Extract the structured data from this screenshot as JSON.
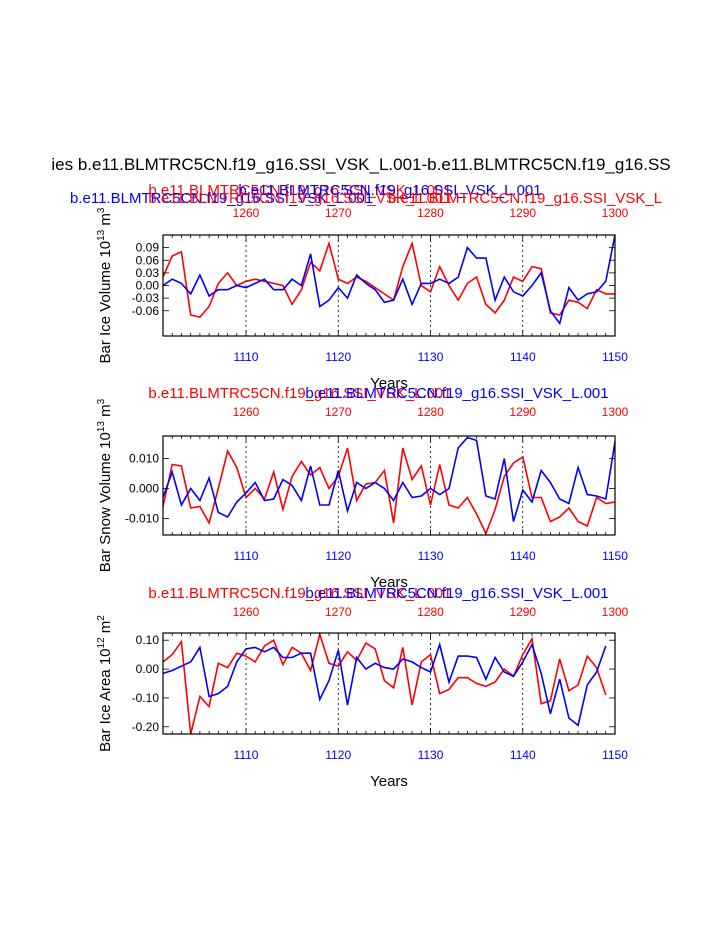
{
  "page_title": "ies b.e11.BLMTRC5CN.f19_g16.SSI_VSK_L.001-b.e11.BLMTRC5CN.f19_g16.SS",
  "colors": {
    "series_a": "#ff0000",
    "series_b": "#0000ff",
    "frame": "#000000",
    "grid": "#000000"
  },
  "chart_data": [
    {
      "type": "line",
      "ylabel": "Bar Ice Volume 10",
      "ylabel_exp": "13",
      "ylabel_unit": " m",
      "ylabel_unit_exp": "3",
      "xlabel": "Years",
      "title_lines": [
        {
          "text": "b.e11.BLMTRC5CN.f19_g16.SSI_VSK_L.001",
          "color": "#ff0000"
        },
        {
          "text": "b.e11.BLMTRC5CN.f19_g16.SSI_VSK_L.001",
          "color": "#0000ff"
        },
        {
          "text": "b.e11.BLMTRC5CN.f19_g16.SSI_VSK_L.001",
          "color": "#ff0000"
        }
      ],
      "top_title_line": {
        "text": "b.e11.BLMTRC5CN.f19_g16.SSI_VSK_L.001b.e11.BLMTRC5CN.f19_g16.SSI_VSK_L",
        "color_a": "#0000ff",
        "color_b": "#ff0000"
      },
      "bottom_axis": {
        "range": [
          1101,
          1150
        ],
        "ticks": [
          1110,
          1120,
          1130,
          1140,
          1150
        ],
        "color": "#0000ff"
      },
      "top_axis": {
        "range": [
          1251,
          1300
        ],
        "ticks": [
          1260,
          1270,
          1280,
          1290,
          1300
        ],
        "color": "#ff0000"
      },
      "ylim": [
        -0.12,
        0.12
      ],
      "yticks": [
        "0.09",
        "0.06",
        "0.03",
        "0.00",
        "-0.03",
        "-0.06"
      ],
      "ytick_values": [
        0.09,
        0.06,
        0.03,
        0.0,
        -0.03,
        -0.06
      ],
      "series": [
        {
          "name": "red",
          "color": "#ff0000",
          "values": [
            0.02,
            0.07,
            0.08,
            -0.07,
            -0.075,
            -0.05,
            0.005,
            0.03,
            0.0,
            0.01,
            0.015,
            0.01,
            0.005,
            0.0,
            -0.045,
            -0.01,
            0.055,
            0.035,
            0.1,
            0.015,
            0.005,
            0.02,
            0.01,
            -0.005,
            -0.02,
            -0.035,
            0.045,
            0.1,
            0.0,
            -0.015,
            0.045,
            0.0,
            -0.035,
            0.005,
            0.02,
            -0.045,
            -0.065,
            -0.035,
            0.02,
            0.01,
            0.045,
            0.04,
            -0.065,
            -0.07,
            -0.035,
            -0.04,
            -0.055,
            -0.01,
            -0.02,
            -0.02
          ]
        },
        {
          "name": "blue",
          "color": "#0000ff",
          "values": [
            0.0,
            0.015,
            0.005,
            -0.02,
            0.025,
            -0.025,
            -0.01,
            -0.01,
            0.0,
            -0.005,
            0.005,
            0.015,
            -0.01,
            -0.01,
            0.015,
            0.0,
            0.075,
            -0.05,
            -0.035,
            -0.005,
            -0.03,
            0.025,
            0.005,
            -0.01,
            -0.04,
            -0.035,
            0.015,
            -0.045,
            0.005,
            0.005,
            0.015,
            0.005,
            0.02,
            0.09,
            0.065,
            0.065,
            -0.035,
            0.02,
            -0.015,
            -0.025,
            0.0,
            0.03,
            -0.06,
            -0.09,
            -0.005,
            -0.035,
            -0.02,
            -0.015,
            0.01,
            0.12
          ]
        }
      ]
    },
    {
      "type": "line",
      "ylabel": "Bar Snow Volume 10",
      "ylabel_exp": "13",
      "ylabel_unit": " m",
      "ylabel_unit_exp": "3",
      "xlabel": "Years",
      "title_lines": [
        {
          "text": "b.e11.BLMTRC5CN.f19_g16.SSI_VSK_L.001",
          "color": "#ff0000"
        },
        {
          "text": "b.e11.BLMTRC5CN.f19_g16.SSI_VSK_L.001",
          "color": "#0000ff"
        }
      ],
      "bottom_axis": {
        "range": [
          1101,
          1150
        ],
        "ticks": [
          1110,
          1120,
          1130,
          1140,
          1150
        ],
        "color": "#0000ff"
      },
      "top_axis": {
        "range": [
          1251,
          1300
        ],
        "ticks": [
          1260,
          1270,
          1280,
          1290,
          1300
        ],
        "color": "#ff0000"
      },
      "ylim": [
        -0.0155,
        0.0175
      ],
      "yticks": [
        "0.010",
        "0.000",
        "-0.010"
      ],
      "ytick_values": [
        0.01,
        0.0,
        -0.01
      ],
      "series": [
        {
          "name": "red",
          "color": "#ff0000",
          "values": [
            -0.006,
            0.008,
            0.0075,
            -0.0065,
            -0.006,
            -0.0115,
            0.0,
            0.0125,
            0.007,
            -0.003,
            0.0,
            -0.0035,
            0.0055,
            -0.007,
            0.004,
            0.009,
            0.0045,
            0.007,
            0.0,
            0.004,
            0.0135,
            -0.004,
            0.0015,
            0.002,
            0.006,
            -0.0115,
            0.0135,
            0.003,
            0.0075,
            -0.0055,
            0.008,
            -0.0055,
            -0.0065,
            -0.003,
            -0.0085,
            -0.015,
            -0.007,
            0.004,
            0.0085,
            0.0105,
            -0.003,
            -0.003,
            -0.011,
            -0.0095,
            -0.0065,
            -0.011,
            -0.0125,
            -0.003,
            -0.005,
            -0.0045
          ]
        },
        {
          "name": "blue",
          "color": "#0000ff",
          "values": [
            -0.003,
            0.0055,
            -0.0055,
            0.0,
            -0.004,
            0.0035,
            -0.008,
            -0.0095,
            -0.0045,
            -0.0015,
            0.002,
            -0.004,
            -0.0035,
            0.003,
            0.001,
            -0.004,
            0.0075,
            -0.0055,
            -0.0055,
            0.006,
            -0.0075,
            0.002,
            0.0,
            0.002,
            0.0,
            -0.004,
            0.002,
            -0.003,
            -0.0025,
            0.0,
            -0.002,
            0.0,
            0.0135,
            0.017,
            0.016,
            -0.0025,
            -0.0035,
            0.01,
            -0.011,
            -0.0005,
            -0.0045,
            0.006,
            0.002,
            -0.0035,
            -0.005,
            0.007,
            -0.002,
            -0.0025,
            -0.0035,
            0.0155
          ]
        }
      ]
    },
    {
      "type": "line",
      "ylabel": "Bar Ice Area 10",
      "ylabel_exp": "12",
      "ylabel_unit": " m",
      "ylabel_unit_exp": "2",
      "xlabel": "Years",
      "title_lines": [
        {
          "text": "b.e11.BLMTRC5CN.f19_g16.SSI_VSK_L.001",
          "color": "#ff0000"
        },
        {
          "text": "b.e11.BLMTRC5CN.f19_g16.SSI_VSK_L.001",
          "color": "#0000ff"
        }
      ],
      "bottom_axis": {
        "range": [
          1101,
          1150
        ],
        "ticks": [
          1110,
          1120,
          1130,
          1140,
          1150
        ],
        "color": "#0000ff"
      },
      "top_axis": {
        "range": [
          1251,
          1300
        ],
        "ticks": [
          1260,
          1270,
          1280,
          1290,
          1300
        ],
        "color": "#ff0000"
      },
      "ylim": [
        -0.225,
        0.125
      ],
      "yticks": [
        "0.10",
        "0.00",
        "-0.10",
        "-0.20"
      ],
      "ytick_values": [
        0.1,
        0.0,
        -0.1,
        -0.2
      ],
      "series": [
        {
          "name": "red",
          "color": "#ff0000",
          "values": [
            0.025,
            0.05,
            0.095,
            -0.225,
            -0.095,
            -0.13,
            0.02,
            0.005,
            0.055,
            0.045,
            0.025,
            0.08,
            0.1,
            0.015,
            0.075,
            0.055,
            -0.005,
            0.12,
            0.02,
            0.01,
            0.06,
            0.03,
            0.09,
            0.07,
            -0.04,
            -0.065,
            0.075,
            -0.125,
            0.025,
            0.05,
            -0.085,
            -0.07,
            -0.03,
            -0.03,
            -0.05,
            -0.06,
            -0.045,
            0.0,
            -0.025,
            0.05,
            0.105,
            -0.12,
            -0.11,
            0.035,
            -0.075,
            -0.055,
            0.045,
            0.005,
            -0.09
          ]
        },
        {
          "name": "blue",
          "color": "#0000ff",
          "values": [
            -0.015,
            -0.005,
            0.01,
            0.025,
            0.075,
            -0.095,
            -0.085,
            -0.06,
            0.025,
            0.07,
            0.075,
            0.06,
            0.075,
            0.04,
            0.04,
            0.055,
            0.055,
            -0.105,
            -0.04,
            0.065,
            -0.125,
            0.04,
            0.0,
            0.02,
            0.005,
            0.0,
            0.035,
            0.025,
            0.005,
            -0.01,
            0.085,
            -0.045,
            0.045,
            0.045,
            0.04,
            -0.035,
            0.04,
            -0.01,
            -0.025,
            0.025,
            0.085,
            -0.015,
            -0.155,
            -0.035,
            -0.17,
            -0.195,
            -0.055,
            -0.01,
            0.08
          ]
        }
      ]
    }
  ]
}
